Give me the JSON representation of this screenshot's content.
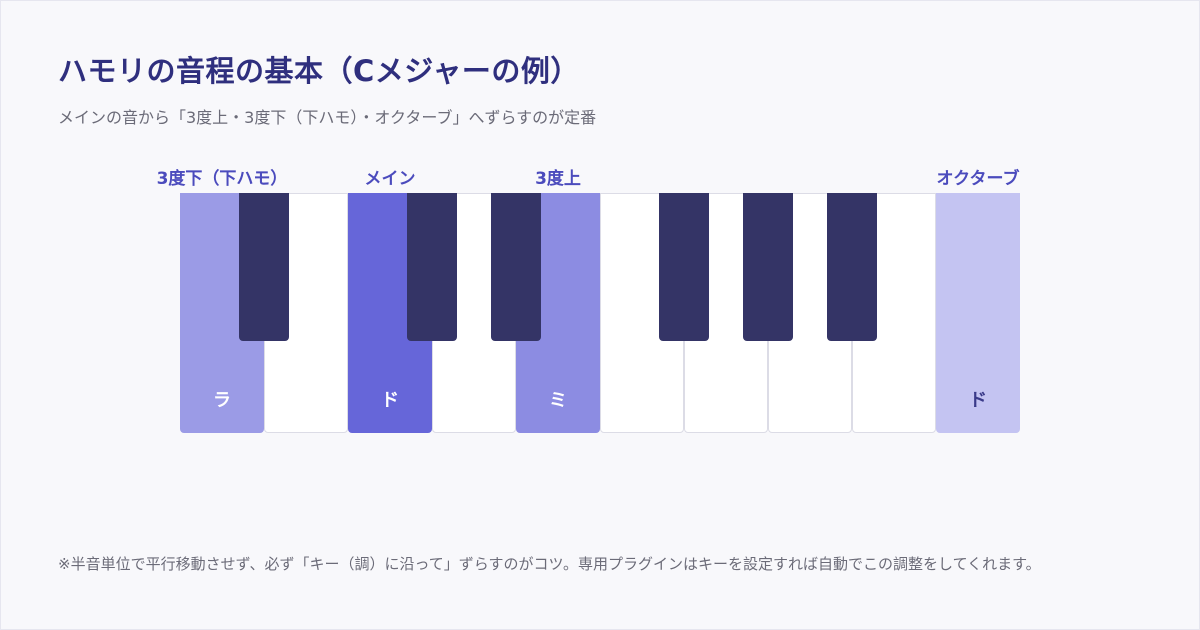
{
  "title": "ハモリの音程の基本（Cメジャーの例）",
  "subtitle": "メインの音から「3度上・3度下（下ハモ）・オクターブ」へずらすのが定番",
  "labels": {
    "lower_third": "3度下（下ハモ）",
    "main": "メイン",
    "upper_third": "3度上",
    "octave": "オクターブ"
  },
  "keys": {
    "la": "ラ",
    "do": "ド",
    "mi": "ミ",
    "do_octave": "ド"
  },
  "colors": {
    "lower_third": "#9b9be6",
    "main": "#6666d9",
    "upper_third": "#8c8ce2",
    "octave": "#c4c4f2",
    "black_key": "#343466"
  },
  "footnote": "※半音単位で平行移動させず、必ず「キー（調）に沿って」ずらすのがコツ。専用プラグインはキーを設定すれば自動でこの調整をしてくれます。"
}
